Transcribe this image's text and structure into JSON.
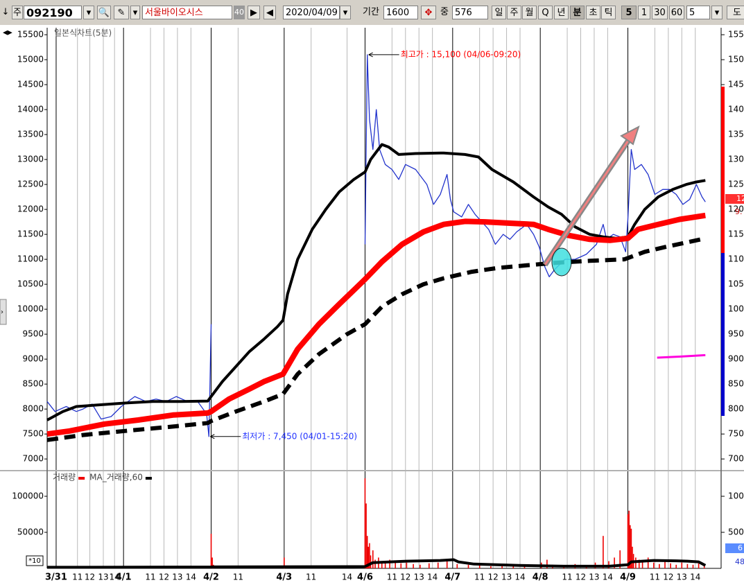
{
  "toolbar": {
    "arrow": "↓",
    "market": "주",
    "code": "092190",
    "name": "서울바이오시스",
    "name_badge": "40",
    "next": "▶",
    "prev": "◀",
    "date": "2020/04/09",
    "period_label": "기간",
    "period": "1600",
    "count_label": "중",
    "count": "576",
    "intervals": [
      "일",
      "주",
      "월",
      "Q",
      "년",
      "분",
      "초",
      "틱"
    ],
    "minutes": [
      "5",
      "1",
      "30",
      "60"
    ],
    "minute_input": "5",
    "more": "도"
  },
  "price_tags": [
    "12",
    "9."
  ],
  "volume_tags": [
    "6",
    "48"
  ],
  "chart_data": [
    {
      "type": "line",
      "title": "일본식차트(5분)",
      "xlim": [
        0,
        600
      ],
      "ylim": [
        6780,
        15640
      ],
      "yticks": [
        7000,
        7500,
        8000,
        8500,
        9000,
        9500,
        10000,
        10500,
        11000,
        11500,
        12000,
        12500,
        13000,
        13500,
        14000,
        14500,
        15000,
        15500
      ],
      "series": [
        {
          "color": "#2233cc",
          "x": [
            0,
            7,
            17,
            26,
            32,
            40,
            48,
            57,
            66,
            78,
            88,
            97,
            106,
            115,
            125,
            134,
            142,
            144,
            146,
            200,
            283,
            285,
            287,
            290,
            293,
            296,
            301,
            307,
            313,
            319,
            328,
            338,
            344,
            350,
            356,
            359,
            362,
            369,
            375,
            381,
            387,
            393,
            399,
            406,
            412,
            418,
            427,
            433,
            438,
            443,
            447,
            452,
            461,
            470,
            480,
            489,
            495,
            498,
            504,
            510,
            515,
            517,
            520,
            523,
            529,
            535,
            541,
            548,
            554,
            560,
            566,
            572,
            578,
            583,
            586
          ],
          "values": [
            8150,
            7950,
            8050,
            7950,
            8000,
            8100,
            7800,
            7850,
            8050,
            8250,
            8150,
            8200,
            8150,
            8250,
            8150,
            8150,
            7900,
            7450,
            9700,
            null,
            11300,
            15100,
            13800,
            13200,
            14000,
            13200,
            12900,
            12800,
            12600,
            12900,
            12800,
            12500,
            12100,
            12300,
            12700,
            12200,
            11950,
            11850,
            12100,
            11900,
            11750,
            11600,
            11300,
            11500,
            11400,
            11550,
            11700,
            11500,
            11250,
            10850,
            10650,
            10800,
            11000,
            11000,
            11100,
            11300,
            11700,
            11400,
            11500,
            11450,
            11150,
            11800,
            13200,
            12800,
            12900,
            12700,
            12300,
            12400,
            12400,
            12300,
            12100,
            12200,
            12500,
            12250,
            12150
          ]
        },
        {
          "color": "#000000",
          "x": [
            0,
            14,
            26,
            44,
            69,
            94,
            119,
            143,
            146,
            156,
            168,
            180,
            193,
            205,
            210,
            214,
            223,
            236,
            248,
            260,
            273,
            283,
            288,
            298,
            304,
            313,
            328,
            353,
            372,
            384,
            396,
            415,
            433,
            446,
            458,
            470,
            483,
            495,
            507,
            517,
            523,
            532,
            544,
            557,
            569,
            578,
            586
          ],
          "values": [
            7780,
            7950,
            8050,
            8080,
            8120,
            8150,
            8150,
            8160,
            8250,
            8550,
            8850,
            9150,
            9400,
            9650,
            9780,
            10300,
            11000,
            11600,
            12000,
            12350,
            12600,
            12750,
            13000,
            13300,
            13250,
            13100,
            13120,
            13130,
            13100,
            13050,
            12800,
            12550,
            12250,
            12050,
            11900,
            11650,
            11500,
            11450,
            11420,
            11450,
            11700,
            12000,
            12250,
            12400,
            12500,
            12550,
            12580
          ]
        },
        {
          "color": "#ff0000",
          "x": [
            0,
            20,
            51,
            81,
            112,
            143,
            146,
            162,
            180,
            193,
            210,
            223,
            242,
            260,
            283,
            298,
            316,
            335,
            353,
            372,
            390,
            415,
            433,
            446,
            464,
            483,
            501,
            517,
            526,
            544,
            563,
            586
          ],
          "values": [
            7500,
            7560,
            7700,
            7780,
            7880,
            7920,
            7950,
            8200,
            8400,
            8550,
            8700,
            9200,
            9700,
            10100,
            10600,
            10950,
            11300,
            11550,
            11700,
            11760,
            11750,
            11720,
            11700,
            11600,
            11480,
            11400,
            11380,
            11420,
            11600,
            11700,
            11800,
            11880
          ]
        },
        {
          "color": "#000000",
          "dashed": true,
          "x": [
            0,
            32,
            69,
            112,
            143,
            146,
            168,
            193,
            210,
            223,
            242,
            267,
            283,
            298,
            316,
            335,
            353,
            378,
            402,
            427,
            452,
            483,
            514,
            532,
            551,
            586
          ],
          "values": [
            7380,
            7480,
            7560,
            7650,
            7720,
            7760,
            7950,
            8150,
            8300,
            8700,
            9100,
            9500,
            9700,
            10050,
            10300,
            10500,
            10620,
            10750,
            10830,
            10880,
            10930,
            10970,
            11000,
            11150,
            11250,
            11420
          ]
        },
        {
          "color": "#ff00dd",
          "x": [
            543,
            563,
            586
          ],
          "values": [
            9030,
            9050,
            9080
          ]
        }
      ],
      "annotations": [
        {
          "text": "최고가 : 15,100 (04/06-09:20)",
          "x": 285,
          "value": 15100,
          "color": "#ff0000"
        },
        {
          "text": "최저가 : 7,450 (04/01-15:20)",
          "x": 144,
          "value": 7450,
          "color": "#2233ff"
        }
      ]
    },
    {
      "type": "bar",
      "scale_label": "*10",
      "xlim": [
        0,
        600
      ],
      "ylim": [
        0,
        134600
      ],
      "yticks": [
        50000,
        100000
      ],
      "xticks": [
        {
          "value": 8,
          "label": "3/31"
        },
        {
          "value": 27,
          "label": "11"
        },
        {
          "value": 38,
          "label": "12"
        },
        {
          "value": 50,
          "label": "13"
        },
        {
          "value": 60,
          "label": "14"
        },
        {
          "value": 68,
          "label": "4/1"
        },
        {
          "value": 92,
          "label": "11"
        },
        {
          "value": 104,
          "label": "12"
        },
        {
          "value": 116,
          "label": "13"
        },
        {
          "value": 128,
          "label": "14"
        },
        {
          "value": 146,
          "label": "4/2"
        },
        {
          "value": 170,
          "label": "11"
        },
        {
          "value": 211,
          "label": "4/3"
        },
        {
          "value": 235,
          "label": "11"
        },
        {
          "value": 267,
          "label": "14"
        },
        {
          "value": 283,
          "label": "4/6"
        },
        {
          "value": 307,
          "label": "11"
        },
        {
          "value": 319,
          "label": "12"
        },
        {
          "value": 331,
          "label": "13"
        },
        {
          "value": 343,
          "label": "14"
        },
        {
          "value": 361,
          "label": "4/7"
        },
        {
          "value": 385,
          "label": "11"
        },
        {
          "value": 397,
          "label": "12"
        },
        {
          "value": 409,
          "label": "13"
        },
        {
          "value": 421,
          "label": "14"
        },
        {
          "value": 439,
          "label": "4/8"
        },
        {
          "value": 463,
          "label": "11"
        },
        {
          "value": 475,
          "label": "12"
        },
        {
          "value": 487,
          "label": "13"
        },
        {
          "value": 499,
          "label": "14"
        },
        {
          "value": 517,
          "label": "4/9"
        },
        {
          "value": 541,
          "label": "11"
        },
        {
          "value": 553,
          "label": "12"
        },
        {
          "value": 565,
          "label": "13"
        },
        {
          "value": 577,
          "label": "14"
        }
      ],
      "series": [
        {
          "name": "거래량",
          "color": "#ee0000",
          "x": [
            146,
            147,
            148,
            211,
            283,
            284,
            285,
            286,
            287,
            288,
            290,
            292,
            295,
            298,
            301,
            305,
            310,
            315,
            320,
            326,
            332,
            340,
            348,
            356,
            365,
            375,
            385,
            395,
            405,
            415,
            425,
            440,
            445,
            450,
            460,
            470,
            480,
            488,
            495,
            500,
            505,
            510,
            517,
            518,
            519,
            520,
            521,
            522,
            524,
            527,
            530,
            535,
            540,
            545,
            550,
            555,
            560,
            565,
            570,
            575,
            580,
            585
          ],
          "values": [
            48000,
            15000,
            5000,
            15000,
            125000,
            90000,
            45000,
            30000,
            35000,
            18000,
            25000,
            12000,
            15000,
            10000,
            8000,
            12000,
            9000,
            7000,
            8000,
            6000,
            5000,
            7000,
            8000,
            10000,
            6000,
            5000,
            4000,
            3000,
            3000,
            4000,
            3000,
            8000,
            12000,
            5000,
            4000,
            6000,
            3000,
            8000,
            45000,
            10000,
            15000,
            25000,
            75000,
            80000,
            60000,
            55000,
            30000,
            20000,
            15000,
            12000,
            10000,
            15000,
            8000,
            6000,
            10000,
            7000,
            5000,
            8000,
            6000,
            5000,
            7000,
            4000
          ]
        },
        {
          "name": "MA_거래량,60",
          "type": "line",
          "color": "#000000",
          "x": [
            0,
            146,
            147,
            283,
            290,
            320,
            350,
            362,
            366,
            380,
            420,
            460,
            500,
            517,
            520,
            540,
            560,
            570,
            580,
            586
          ],
          "values": [
            1500,
            1800,
            2000,
            2500,
            8000,
            10000,
            11000,
            12000,
            9000,
            6000,
            4000,
            3000,
            3000,
            5000,
            9000,
            11000,
            10500,
            10000,
            9000,
            4000
          ]
        }
      ]
    }
  ]
}
